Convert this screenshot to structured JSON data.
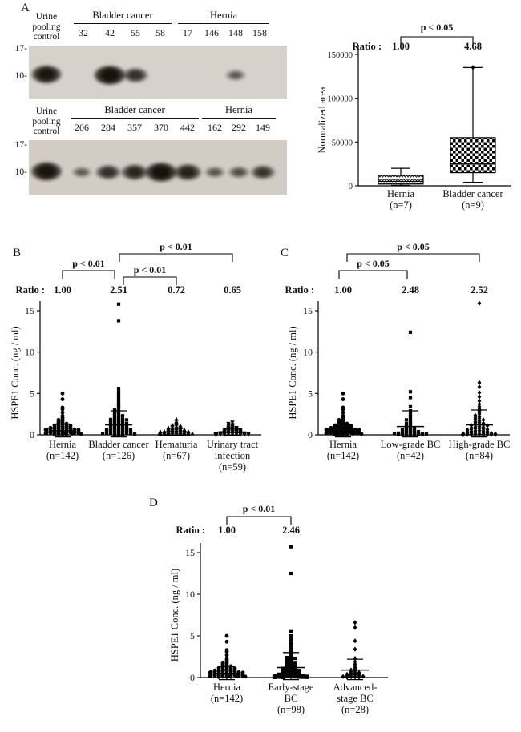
{
  "panels": {
    "a": "A",
    "b": "B",
    "c": "C",
    "d": "D"
  },
  "panel_a": {
    "blots": [
      {
        "control_lines": [
          "Urine",
          "pooling",
          "control"
        ],
        "mw": [
          "17-",
          "10-"
        ],
        "control_band": 0.9,
        "groups": [
          {
            "label": "Bladder cancer",
            "lanes": [
              {
                "id": "32",
                "band": 0
              },
              {
                "id": "42",
                "band": 1
              },
              {
                "id": "55",
                "band": 0.6
              },
              {
                "id": "58",
                "band": 0
              }
            ]
          },
          {
            "label": "Hernia",
            "lanes": [
              {
                "id": "17",
                "band": 0
              },
              {
                "id": "146",
                "band": 0
              },
              {
                "id": "148",
                "band": 0.28
              },
              {
                "id": "158",
                "band": 0
              }
            ]
          }
        ]
      },
      {
        "control_lines": [
          "Urine",
          "pooling",
          "control"
        ],
        "mw": [
          "17-",
          "10-"
        ],
        "control_band": 0.95,
        "groups": [
          {
            "label": "Bladder cancer",
            "lanes": [
              {
                "id": "206",
                "band": 0.25
              },
              {
                "id": "284",
                "band": 0.6
              },
              {
                "id": "357",
                "band": 0.7
              },
              {
                "id": "370",
                "band": 1
              },
              {
                "id": "442",
                "band": 0.75
              }
            ]
          },
          {
            "label": "Hernia",
            "lanes": [
              {
                "id": "162",
                "band": 0.3
              },
              {
                "id": "292",
                "band": 0.35
              },
              {
                "id": "149",
                "band": 0.55
              }
            ]
          }
        ]
      }
    ]
  },
  "chart_data": [
    {
      "id": "box-a",
      "type": "box",
      "ylabel": "Normalized area",
      "ylim": [
        0,
        150000
      ],
      "yticks": [
        0,
        50000,
        100000,
        150000
      ],
      "ratio_label": "Ratio :",
      "groups": [
        {
          "label_lines": [
            "Hernia",
            "(n=7)"
          ],
          "ratio": "1.00",
          "pattern": "zigzag",
          "whisker_low": 500,
          "q1": 2000,
          "median": 5000,
          "q3": 12000,
          "whisker_high": 20000
        },
        {
          "label_lines": [
            "Bladder cancer",
            "(n=9)"
          ],
          "ratio": "4.68",
          "pattern": "checker",
          "whisker_low": 4000,
          "q1": 15000,
          "median": 25000,
          "q3": 55000,
          "whisker_high": 135000,
          "outlier_marker": "diamond"
        }
      ],
      "significance": [
        {
          "label": "p < 0.05",
          "from": 0,
          "to": 1
        }
      ]
    },
    {
      "id": "scatter-b",
      "type": "scatter",
      "ylabel": "HSPE1 Conc. (ng / ml)",
      "ylim": [
        0,
        15
      ],
      "yticks": [
        0,
        5,
        10,
        15
      ],
      "ratio_label": "Ratio :",
      "groups": [
        {
          "label_lines": [
            "Hernia",
            "(n=142)"
          ],
          "marker": "circle",
          "ratio": "1.00",
          "mean": 0.5,
          "sd": 0.8,
          "values": [
            5,
            4.3,
            3.3,
            3.1,
            2.7,
            2.3,
            2.1,
            1.9,
            1.8,
            1.7,
            1.6,
            1.5,
            1.4,
            1.35,
            1.3,
            1.25,
            1.2,
            1.15,
            1.1,
            1.05,
            1,
            0.95,
            0.9,
            0.9,
            0.85,
            0.8,
            0.8,
            0.75,
            0.75,
            0.7,
            0.7,
            0.65,
            0.65,
            0.6,
            0.6,
            0.55,
            0.55,
            0.5,
            0.5,
            0.45,
            0.45,
            0.4,
            0.4,
            0.38,
            0.35,
            0.32,
            0.3,
            0.3,
            0.28,
            0.25,
            0.25,
            0.22,
            0.2,
            0.2,
            0.18,
            0.15,
            0.15,
            0.12,
            0.1,
            0.1,
            0.08,
            0.05
          ]
        },
        {
          "label_lines": [
            "Bladder cancer",
            "(n=126)"
          ],
          "marker": "square",
          "ratio": "2.51",
          "mean": 1.2,
          "sd": 1.7,
          "values": [
            15.8,
            13.8,
            5.6,
            5.2,
            4.9,
            4.6,
            4.3,
            4,
            3.8,
            3.6,
            3.4,
            3.2,
            3,
            2.9,
            2.8,
            2.7,
            2.6,
            2.5,
            2.4,
            2.3,
            2.2,
            2.1,
            2,
            1.95,
            1.9,
            1.85,
            1.8,
            1.75,
            1.7,
            1.65,
            1.6,
            1.55,
            1.5,
            1.45,
            1.4,
            1.35,
            1.3,
            1.25,
            1.2,
            1.15,
            1.1,
            1.05,
            1,
            0.95,
            0.9,
            0.85,
            0.8,
            0.78,
            0.75,
            0.7,
            0.68,
            0.65,
            0.6,
            0.58,
            0.55,
            0.5,
            0.48,
            0.45,
            0.4,
            0.38,
            0.35,
            0.3,
            0.28,
            0.25,
            0.22,
            0.2,
            0.18,
            0.15,
            0.12,
            0.1,
            0.08,
            0.05
          ]
        },
        {
          "label_lines": [
            "Hematuria",
            "(n=67)"
          ],
          "marker": "triangle",
          "ratio": "0.72",
          "mean": 0.35,
          "sd": 0.45,
          "values": [
            1.9,
            1.6,
            1.45,
            1.3,
            1.2,
            1.1,
            1,
            0.95,
            0.9,
            0.85,
            0.8,
            0.75,
            0.7,
            0.65,
            0.6,
            0.58,
            0.55,
            0.5,
            0.48,
            0.45,
            0.42,
            0.4,
            0.38,
            0.35,
            0.32,
            0.3,
            0.28,
            0.25,
            0.22,
            0.2,
            0.18,
            0.15,
            0.15,
            0.12,
            0.1,
            0.1,
            0.08,
            0.08,
            0.05,
            0.05,
            0.04,
            0.03
          ]
        },
        {
          "label_lines": [
            "Urinary tract",
            "infection",
            "(n=59)"
          ],
          "marker": "triangle-down",
          "ratio": "0.65",
          "mean": 0.3,
          "sd": 0.4,
          "values": [
            1.5,
            1.35,
            1.2,
            1.1,
            1,
            0.9,
            0.85,
            0.8,
            0.75,
            0.7,
            0.65,
            0.6,
            0.55,
            0.5,
            0.45,
            0.42,
            0.4,
            0.35,
            0.32,
            0.3,
            0.28,
            0.25,
            0.22,
            0.2,
            0.18,
            0.15,
            0.12,
            0.1,
            0.1,
            0.08,
            0.08,
            0.05,
            0.05,
            0.04,
            0.03,
            0.03,
            0.02,
            0.02
          ]
        }
      ],
      "significance": [
        {
          "label": "p < 0.01",
          "from": 0,
          "to": 1
        },
        {
          "label": "p < 0.01",
          "from": 1,
          "to": 2
        },
        {
          "label": "p < 0.01",
          "from": 1,
          "to": 3
        }
      ]
    },
    {
      "id": "scatter-c",
      "type": "scatter",
      "ylabel": "HSPE1 Conc. (ng / ml)",
      "ylim": [
        0,
        15
      ],
      "yticks": [
        0,
        5,
        10,
        15
      ],
      "ratio_label": "Ratio :",
      "groups": [
        {
          "label_lines": [
            "Hernia",
            "(n=142)"
          ],
          "marker": "circle",
          "ratio": "1.00",
          "mean": 0.5,
          "sd": 0.8,
          "values": [
            5,
            4.3,
            3.3,
            3.1,
            2.7,
            2.3,
            2.1,
            1.9,
            1.8,
            1.7,
            1.6,
            1.5,
            1.4,
            1.35,
            1.3,
            1.25,
            1.2,
            1.15,
            1.1,
            1.05,
            1,
            0.95,
            0.9,
            0.9,
            0.85,
            0.8,
            0.8,
            0.75,
            0.75,
            0.7,
            0.7,
            0.65,
            0.65,
            0.6,
            0.6,
            0.55,
            0.55,
            0.5,
            0.5,
            0.45,
            0.45,
            0.4,
            0.4,
            0.38,
            0.35,
            0.32,
            0.3,
            0.3,
            0.28,
            0.25,
            0.25,
            0.22,
            0.2,
            0.2,
            0.18,
            0.15,
            0.15,
            0.12,
            0.1,
            0.1,
            0.08,
            0.05
          ]
        },
        {
          "label_lines": [
            "Low-grade BC",
            "(n=42)"
          ],
          "marker": "square",
          "ratio": "2.48",
          "mean": 1.0,
          "sd": 1.9,
          "values": [
            12.4,
            5.2,
            4.5,
            3.4,
            2.9,
            2.5,
            2.2,
            2,
            1.8,
            1.6,
            1.5,
            1.35,
            1.2,
            1.1,
            1,
            0.9,
            0.85,
            0.8,
            0.72,
            0.65,
            0.6,
            0.55,
            0.5,
            0.45,
            0.4,
            0.38,
            0.35,
            0.3,
            0.28,
            0.25,
            0.22,
            0.2,
            0.18,
            0.15,
            0.12,
            0.1,
            0.08,
            0.06,
            0.05,
            0.05,
            0.04,
            0.03
          ]
        },
        {
          "label_lines": [
            "High-grade BC",
            "(n=84)"
          ],
          "marker": "diamond",
          "ratio": "2.52",
          "mean": 1.2,
          "sd": 1.8,
          "values": [
            15.9,
            6.3,
            5.8,
            5.1,
            4.6,
            4.1,
            3.7,
            3.4,
            3.1,
            2.9,
            2.7,
            2.5,
            2.35,
            2.2,
            2.1,
            2,
            1.9,
            1.8,
            1.7,
            1.6,
            1.5,
            1.45,
            1.4,
            1.3,
            1.25,
            1.2,
            1.15,
            1.1,
            1,
            0.95,
            0.9,
            0.85,
            0.8,
            0.75,
            0.7,
            0.68,
            0.65,
            0.6,
            0.55,
            0.5,
            0.48,
            0.45,
            0.4,
            0.38,
            0.35,
            0.3,
            0.28,
            0.25,
            0.22,
            0.2,
            0.18,
            0.15,
            0.12,
            0.1,
            0.1,
            0.08,
            0.06,
            0.05,
            0.05,
            0.04,
            0.03,
            0.02,
            0.02
          ]
        }
      ],
      "significance": [
        {
          "label": "p < 0.05",
          "from": 0,
          "to": 1
        },
        {
          "label": "p < 0.05",
          "from": 0,
          "to": 2
        }
      ]
    },
    {
      "id": "scatter-d",
      "type": "scatter",
      "ylabel": "HSPE1 Conc. (ng / ml)",
      "ylim": [
        0,
        15
      ],
      "yticks": [
        0,
        5,
        10,
        15
      ],
      "ratio_label": "Ratio :",
      "groups": [
        {
          "label_lines": [
            "Hernia",
            "(n=142)"
          ],
          "marker": "circle",
          "ratio": "1.00",
          "mean": 0.5,
          "sd": 0.8,
          "values": [
            5,
            4.3,
            3.3,
            3.1,
            2.7,
            2.3,
            2.1,
            1.9,
            1.8,
            1.7,
            1.6,
            1.5,
            1.4,
            1.35,
            1.3,
            1.25,
            1.2,
            1.15,
            1.1,
            1.05,
            1,
            0.95,
            0.9,
            0.9,
            0.85,
            0.8,
            0.8,
            0.75,
            0.75,
            0.7,
            0.7,
            0.65,
            0.65,
            0.6,
            0.6,
            0.55,
            0.55,
            0.5,
            0.5,
            0.45,
            0.45,
            0.4,
            0.4,
            0.38,
            0.35,
            0.32,
            0.3,
            0.3,
            0.28,
            0.25,
            0.25,
            0.22,
            0.2,
            0.2,
            0.18,
            0.15,
            0.15,
            0.12,
            0.1,
            0.1,
            0.08,
            0.05
          ]
        },
        {
          "label_lines": [
            "Early-stage",
            "BC",
            "(n=98)"
          ],
          "marker": "square",
          "ratio": "2.46",
          "mean": 1.2,
          "sd": 1.8,
          "values": [
            15.7,
            12.5,
            5.5,
            5,
            4.6,
            4.2,
            3.9,
            3.6,
            3.3,
            3,
            2.8,
            2.6,
            2.5,
            2.4,
            2.3,
            2.2,
            2.1,
            2,
            1.9,
            1.8,
            1.7,
            1.6,
            1.5,
            1.45,
            1.4,
            1.3,
            1.25,
            1.2,
            1.1,
            1.05,
            1,
            0.95,
            0.9,
            0.85,
            0.8,
            0.75,
            0.7,
            0.65,
            0.6,
            0.58,
            0.55,
            0.5,
            0.45,
            0.42,
            0.4,
            0.35,
            0.32,
            0.3,
            0.28,
            0.25,
            0.22,
            0.2,
            0.18,
            0.15,
            0.12,
            0.1,
            0.1,
            0.08,
            0.06,
            0.05,
            0.05,
            0.04,
            0.03,
            0.02,
            0.02,
            0.01
          ]
        },
        {
          "label_lines": [
            "Advanced-",
            "stage BC",
            "(n=28)"
          ],
          "marker": "diamond",
          "ratio": null,
          "mean": 0.9,
          "sd": 1.3,
          "values": [
            6.6,
            6,
            4.4,
            3.4,
            2.3,
            1.9,
            1.6,
            1.4,
            1.2,
            1.05,
            0.9,
            0.8,
            0.7,
            0.6,
            0.55,
            0.5,
            0.45,
            0.4,
            0.35,
            0.3,
            0.25,
            0.2,
            0.15,
            0.12,
            0.1,
            0.08,
            0.05,
            0.03
          ]
        }
      ],
      "significance": [
        {
          "label": "p < 0.01",
          "from": 0,
          "to": 1
        }
      ]
    }
  ]
}
